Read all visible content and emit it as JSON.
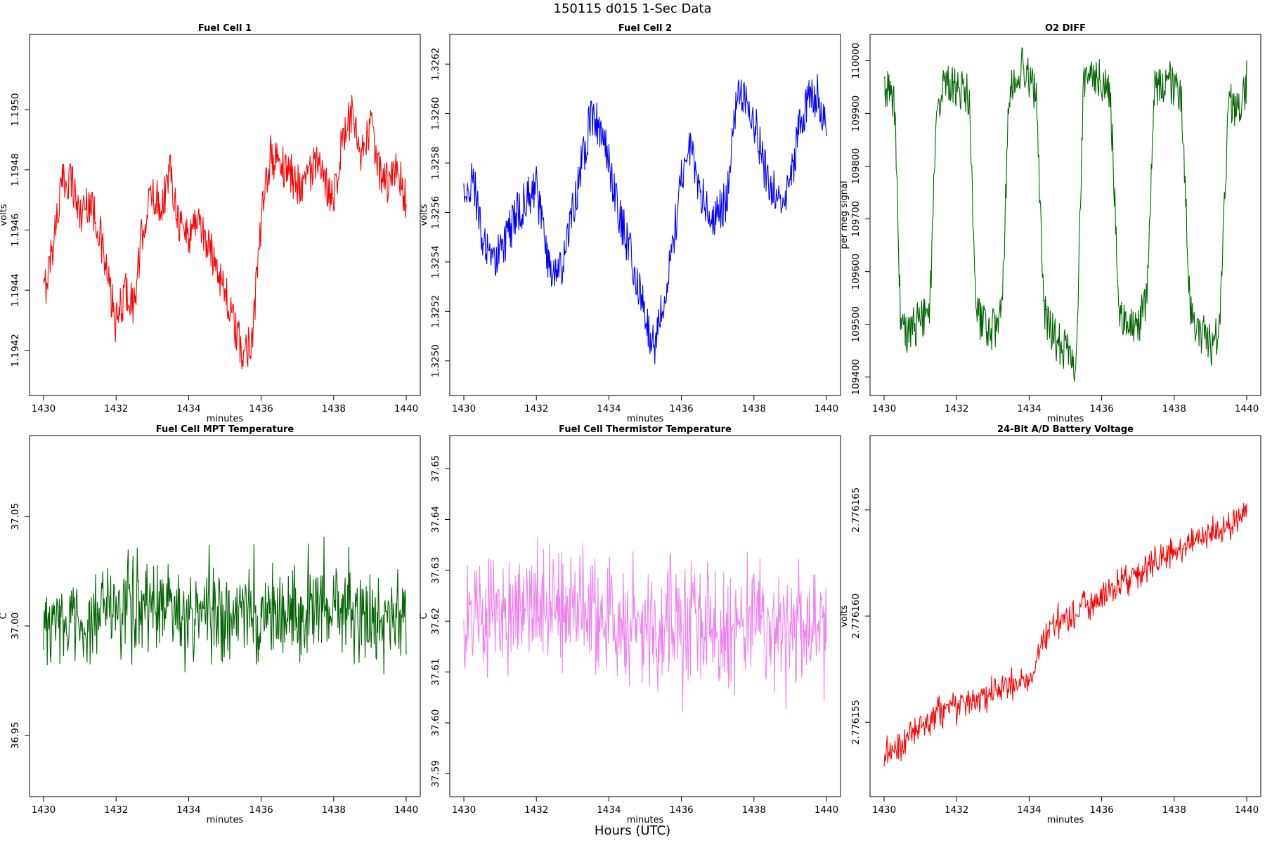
{
  "figure": {
    "suptitle": "150115   d015   1-Sec Data",
    "bottom_label": "Hours (UTC)"
  },
  "chart_data": [
    {
      "type": "line",
      "title": "Fuel Cell 1",
      "xlabel": "minutes",
      "ylabel": "volts",
      "color": "#ff0000",
      "xlim": [
        1430,
        1440
      ],
      "ylim": [
        1.19405,
        1.19525
      ],
      "xticks": [
        1430,
        1432,
        1434,
        1436,
        1438,
        1440
      ],
      "yticks": [
        1.1942,
        1.1944,
        1.1946,
        1.1948,
        1.195
      ],
      "ytick_labels": [
        "1.1942",
        "1.1944",
        "1.1946",
        "1.1948",
        "1.1950"
      ],
      "series": [
        {
          "x": [
            1430.0,
            1430.25,
            1430.5,
            1430.75,
            1431.0,
            1431.25,
            1431.5,
            1431.75,
            1432.0,
            1432.25,
            1432.5,
            1432.75,
            1433.0,
            1433.25,
            1433.5,
            1433.75,
            1434.0,
            1434.25,
            1434.5,
            1434.75,
            1435.0,
            1435.25,
            1435.5,
            1435.75,
            1436.0,
            1436.25,
            1436.5,
            1436.75,
            1437.0,
            1437.25,
            1437.5,
            1437.75,
            1438.0,
            1438.25,
            1438.5,
            1438.75,
            1439.0,
            1439.25,
            1439.5,
            1439.75,
            1440.0
          ],
          "y": [
            1.19438,
            1.19455,
            1.19475,
            1.19478,
            1.19465,
            1.1947,
            1.19462,
            1.19445,
            1.19428,
            1.1944,
            1.19435,
            1.19462,
            1.19472,
            1.19468,
            1.1948,
            1.19462,
            1.19458,
            1.19465,
            1.19455,
            1.1945,
            1.1944,
            1.19428,
            1.19418,
            1.19425,
            1.19462,
            1.19485,
            1.19482,
            1.1948,
            1.19475,
            1.19478,
            1.19482,
            1.19475,
            1.19472,
            1.1949,
            1.19498,
            1.19482,
            1.19495,
            1.1948,
            1.19475,
            1.1948,
            1.1947
          ]
        }
      ]
    },
    {
      "type": "line",
      "title": "Fuel Cell 2",
      "xlabel": "minutes",
      "ylabel": "volts",
      "color": "#0000ff",
      "xlim": [
        1430,
        1440
      ],
      "ylim": [
        1.32486,
        1.32632
      ],
      "xticks": [
        1430,
        1432,
        1434,
        1436,
        1438,
        1440
      ],
      "yticks": [
        1.325,
        1.3252,
        1.3254,
        1.3256,
        1.3258,
        1.326,
        1.3262
      ],
      "ytick_labels": [
        "1.3250",
        "1.3252",
        "1.3254",
        "1.3256",
        "1.3258",
        "1.3260",
        "1.3262"
      ],
      "series": [
        {
          "x": [
            1430.0,
            1430.25,
            1430.5,
            1430.75,
            1431.0,
            1431.25,
            1431.5,
            1431.75,
            1432.0,
            1432.25,
            1432.5,
            1432.75,
            1433.0,
            1433.25,
            1433.5,
            1433.75,
            1434.0,
            1434.25,
            1434.5,
            1434.75,
            1435.0,
            1435.25,
            1435.5,
            1435.75,
            1436.0,
            1436.25,
            1436.5,
            1436.75,
            1437.0,
            1437.25,
            1437.5,
            1437.75,
            1438.0,
            1438.25,
            1438.5,
            1438.75,
            1439.0,
            1439.25,
            1439.5,
            1439.75,
            1440.0
          ],
          "y": [
            1.32565,
            1.32575,
            1.3255,
            1.32538,
            1.32545,
            1.32552,
            1.3256,
            1.32565,
            1.3257,
            1.32545,
            1.32535,
            1.3254,
            1.3256,
            1.3258,
            1.32598,
            1.32595,
            1.3258,
            1.32562,
            1.32548,
            1.32535,
            1.32518,
            1.32505,
            1.32525,
            1.32545,
            1.32575,
            1.32585,
            1.3257,
            1.32558,
            1.3256,
            1.32565,
            1.32605,
            1.32608,
            1.32598,
            1.3258,
            1.3257,
            1.32565,
            1.3257,
            1.32595,
            1.32605,
            1.32608,
            1.32595
          ]
        }
      ]
    },
    {
      "type": "line",
      "title": "O2 DIFF",
      "xlabel": "minutes",
      "ylabel": "per meg signal",
      "color": "#006400",
      "xlim": [
        1430,
        1440
      ],
      "ylim": [
        109365,
        110050
      ],
      "xticks": [
        1430,
        1432,
        1434,
        1436,
        1438,
        1440
      ],
      "yticks": [
        109400,
        109500,
        109600,
        109700,
        109800,
        109900,
        110000
      ],
      "ytick_labels": [
        "109400",
        "109500",
        "109600",
        "109700",
        "109800",
        "109900",
        "110000"
      ],
      "series": [
        {
          "x": [
            1430.0,
            1430.15,
            1430.3,
            1430.45,
            1430.6,
            1430.9,
            1431.05,
            1431.25,
            1431.45,
            1431.7,
            1432.0,
            1432.35,
            1432.55,
            1432.9,
            1433.1,
            1433.25,
            1433.45,
            1433.8,
            1434.05,
            1434.2,
            1434.4,
            1434.75,
            1435.1,
            1435.3,
            1435.5,
            1435.8,
            1436.05,
            1436.25,
            1436.5,
            1436.8,
            1437.05,
            1437.25,
            1437.45,
            1437.8,
            1438.0,
            1438.2,
            1438.45,
            1438.8,
            1439.05,
            1439.25,
            1439.5,
            1439.8,
            1440.0
          ],
          "y": [
            109930,
            109960,
            109900,
            109520,
            109480,
            109500,
            109510,
            109500,
            109920,
            109960,
            109950,
            109930,
            109520,
            109480,
            109500,
            109520,
            109940,
            109990,
            109960,
            109930,
            109520,
            109470,
            109440,
            109420,
            109950,
            109980,
            109960,
            109920,
            109520,
            109490,
            109510,
            109540,
            109940,
            109970,
            109950,
            109920,
            109520,
            109480,
            109460,
            109500,
            109920,
            109910,
            109960
          ]
        }
      ]
    },
    {
      "type": "line",
      "title": "Fuel Cell MPT Temperature",
      "xlabel": "minutes",
      "ylabel": "C",
      "color": "#006400",
      "xlim": [
        1430,
        1440
      ],
      "ylim": [
        36.922,
        37.087
      ],
      "xticks": [
        1430,
        1432,
        1434,
        1436,
        1438,
        1440
      ],
      "yticks": [
        36.95,
        37.0,
        37.05
      ],
      "ytick_labels": [
        "36.95",
        "37.00",
        "37.05"
      ],
      "series": [
        {
          "x": [
            1430.0,
            1430.5,
            1431.0,
            1431.5,
            1432.0,
            1432.5,
            1433.0,
            1433.5,
            1434.0,
            1434.5,
            1435.0,
            1435.5,
            1436.0,
            1436.5,
            1437.0,
            1437.5,
            1438.0,
            1438.5,
            1439.0,
            1439.5,
            1440.0
          ],
          "y": [
            37.005,
            37.004,
            37.0,
            37.006,
            37.008,
            37.01,
            37.012,
            37.006,
            37.004,
            37.007,
            37.003,
            37.005,
            37.008,
            37.004,
            37.006,
            37.01,
            37.008,
            37.006,
            37.004,
            37.005,
            37.006
          ],
          "noise": 0.022
        }
      ]
    },
    {
      "type": "line",
      "title": "Fuel Cell Thermistor Temperature",
      "xlabel": "minutes",
      "ylabel": "C",
      "color": "#ee82ee",
      "xlim": [
        1430,
        1440
      ],
      "ylim": [
        37.5855,
        37.6565
      ],
      "xticks": [
        1430,
        1432,
        1434,
        1436,
        1438,
        1440
      ],
      "yticks": [
        37.59,
        37.6,
        37.61,
        37.62,
        37.63,
        37.64,
        37.65
      ],
      "ytick_labels": [
        "37.59",
        "37.60",
        "37.61",
        "37.62",
        "37.63",
        "37.64",
        "37.65"
      ],
      "series": [
        {
          "x": [
            1430.0,
            1430.5,
            1431.0,
            1431.5,
            1432.0,
            1432.5,
            1433.0,
            1433.5,
            1434.0,
            1434.5,
            1435.0,
            1435.5,
            1436.0,
            1436.5,
            1437.0,
            1437.5,
            1438.0,
            1438.5,
            1439.0,
            1439.5,
            1440.0
          ],
          "y": [
            37.62,
            37.621,
            37.62,
            37.622,
            37.623,
            37.622,
            37.621,
            37.62,
            37.619,
            37.62,
            37.619,
            37.618,
            37.619,
            37.62,
            37.618,
            37.617,
            37.619,
            37.618,
            37.617,
            37.617,
            37.616
          ],
          "noise": 0.012
        }
      ]
    },
    {
      "type": "line",
      "title": "24-Bit A/D Battery Voltage",
      "xlabel": "minutes",
      "ylabel": "volts",
      "color": "#ff0000",
      "xlim": [
        1430,
        1440
      ],
      "ylim": [
        2.7761515,
        2.7761685
      ],
      "xticks": [
        1430,
        1432,
        1434,
        1436,
        1438,
        1440
      ],
      "yticks": [
        2.776155,
        2.77616,
        2.776165
      ],
      "ytick_labels": [
        "2.776155",
        "2.776160",
        "2.776165"
      ],
      "series": [
        {
          "x": [
            1430.0,
            1430.5,
            1431.0,
            1431.5,
            1432.0,
            1432.5,
            1433.0,
            1433.5,
            1434.0,
            1434.5,
            1435.0,
            1435.5,
            1436.0,
            1436.5,
            1437.0,
            1437.5,
            1438.0,
            1438.5,
            1439.0,
            1439.5,
            1440.0
          ],
          "y": [
            2.7761535,
            2.7761538,
            2.7761548,
            2.7761555,
            2.7761558,
            2.776156,
            2.7761565,
            2.7761567,
            2.776157,
            2.7761595,
            2.7761598,
            2.7761605,
            2.7761608,
            2.7761615,
            2.776162,
            2.7761625,
            2.776163,
            2.7761635,
            2.776164,
            2.7761643,
            2.7761648
          ],
          "noise": 7e-07
        }
      ]
    }
  ]
}
